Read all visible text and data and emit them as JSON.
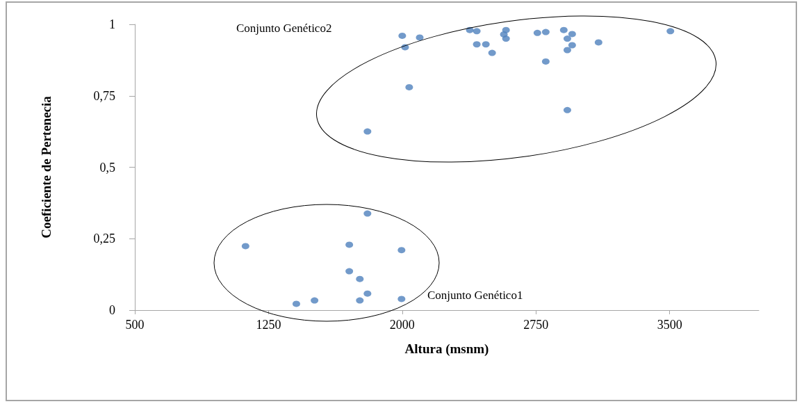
{
  "chart_data": {
    "type": "scatter",
    "xlabel": "Altura (msnm)",
    "ylabel": "Coeficiente de Pertenecia",
    "x": [
      2000,
      2016,
      2098,
      2039,
      1805,
      2379,
      2418,
      2418,
      2469,
      2504,
      2570,
      2582,
      2582,
      2758,
      2805,
      2805,
      2906,
      2926,
      2953,
      2926,
      2953,
      2926,
      3101,
      3504,
      1121,
      1805,
      1703,
      1996,
      1703,
      1762,
      1805,
      1762,
      1996,
      1508,
      1406
    ],
    "values": [
      0.96,
      0.92,
      0.954,
      0.78,
      0.625,
      0.98,
      0.976,
      0.93,
      0.93,
      0.9,
      0.965,
      0.95,
      0.98,
      0.97,
      0.973,
      0.87,
      0.98,
      0.95,
      0.966,
      0.91,
      0.927,
      0.7,
      0.937,
      0.976,
      0.224,
      0.338,
      0.229,
      0.21,
      0.136,
      0.109,
      0.058,
      0.034,
      0.039,
      0.034,
      0.022
    ],
    "color": "#4f81bd",
    "marker": "circle",
    "xlim": [
      500,
      4000
    ],
    "xticks": [
      500,
      1250,
      2000,
      2750,
      3500
    ],
    "ylim": [
      0,
      1
    ],
    "yticks": [
      0,
      {
        "value": 0.25,
        "label": "0,25"
      },
      {
        "value": 0.5,
        "label": "0,5"
      },
      {
        "value": 0.75,
        "label": "0,75"
      },
      1
    ],
    "grid": false,
    "annotations": [
      "Conjunto Genético2",
      "Conjunto Genético1"
    ]
  }
}
